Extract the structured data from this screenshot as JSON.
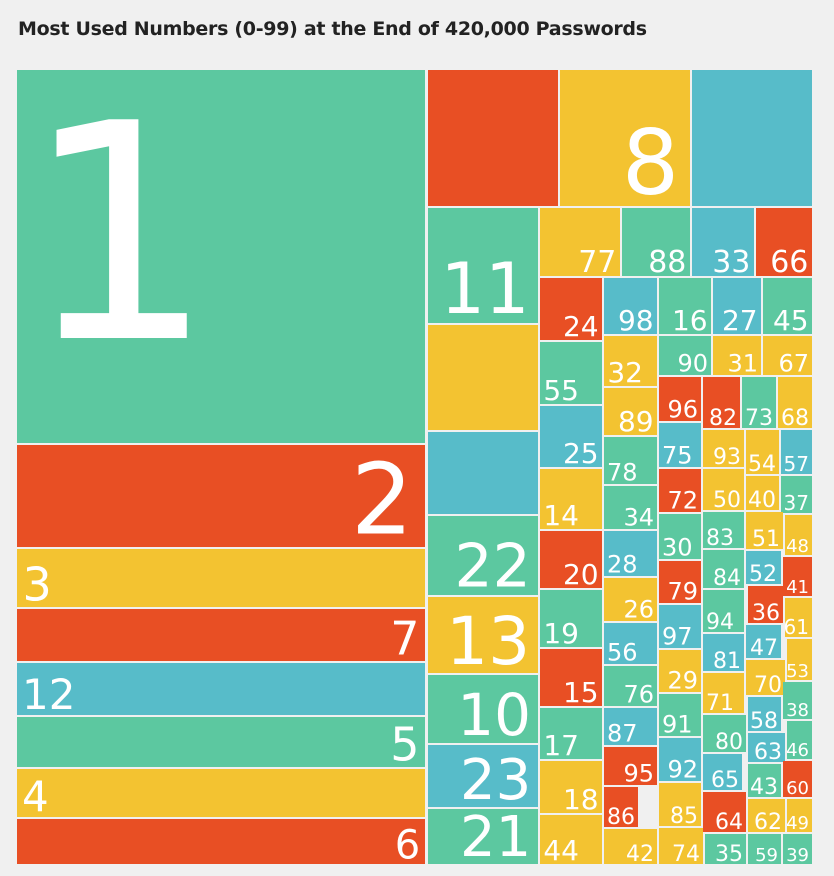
{
  "chart_data": {
    "type": "treemap",
    "title": "Most Used Numbers (0-99) at the End of 420,000 Passwords",
    "colors": {
      "green": "#5cc8a0",
      "red": "#e84f24",
      "yellow": "#f3c331",
      "blue": "#57bcc9"
    },
    "cells": [
      {
        "label": "1",
        "color": "green"
      },
      {
        "label": "",
        "color": "red"
      },
      {
        "label": "8",
        "color": "yellow"
      },
      {
        "label": "",
        "color": "blue"
      },
      {
        "label": "2",
        "color": "red"
      },
      {
        "label": "3",
        "color": "yellow"
      },
      {
        "label": "7",
        "color": "red"
      },
      {
        "label": "12",
        "color": "blue"
      },
      {
        "label": "5",
        "color": "green"
      },
      {
        "label": "4",
        "color": "yellow"
      },
      {
        "label": "6",
        "color": "red"
      },
      {
        "label": "11",
        "color": "green"
      },
      {
        "label": "",
        "color": "yellow"
      },
      {
        "label": "",
        "color": "blue"
      },
      {
        "label": "22",
        "color": "green"
      },
      {
        "label": "13",
        "color": "yellow"
      },
      {
        "label": "10",
        "color": "green"
      },
      {
        "label": "23",
        "color": "blue"
      },
      {
        "label": "21",
        "color": "green"
      },
      {
        "label": "77",
        "color": "yellow"
      },
      {
        "label": "88",
        "color": "green"
      },
      {
        "label": "33",
        "color": "blue"
      },
      {
        "label": "66",
        "color": "red"
      },
      {
        "label": "24",
        "color": "red"
      },
      {
        "label": "98",
        "color": "blue"
      },
      {
        "label": "16",
        "color": "green"
      },
      {
        "label": "27",
        "color": "blue"
      },
      {
        "label": "45",
        "color": "green"
      },
      {
        "label": "55",
        "color": "green"
      },
      {
        "label": "32",
        "color": "yellow"
      },
      {
        "label": "90",
        "color": "green"
      },
      {
        "label": "31",
        "color": "yellow"
      },
      {
        "label": "67",
        "color": "yellow"
      },
      {
        "label": "89",
        "color": "yellow"
      },
      {
        "label": "96",
        "color": "red"
      },
      {
        "label": "82",
        "color": "red"
      },
      {
        "label": "73",
        "color": "green"
      },
      {
        "label": "68",
        "color": "yellow"
      },
      {
        "label": "25",
        "color": "blue"
      },
      {
        "label": "78",
        "color": "green"
      },
      {
        "label": "75",
        "color": "blue"
      },
      {
        "label": "93",
        "color": "yellow"
      },
      {
        "label": "54",
        "color": "yellow"
      },
      {
        "label": "57",
        "color": "blue"
      },
      {
        "label": "14",
        "color": "yellow"
      },
      {
        "label": "34",
        "color": "green"
      },
      {
        "label": "72",
        "color": "red"
      },
      {
        "label": "50",
        "color": "yellow"
      },
      {
        "label": "40",
        "color": "yellow"
      },
      {
        "label": "37",
        "color": "green"
      },
      {
        "label": "30",
        "color": "green"
      },
      {
        "label": "83",
        "color": "green"
      },
      {
        "label": "51",
        "color": "yellow"
      },
      {
        "label": "48",
        "color": "yellow"
      },
      {
        "label": "20",
        "color": "red"
      },
      {
        "label": "28",
        "color": "blue"
      },
      {
        "label": "79",
        "color": "red"
      },
      {
        "label": "84",
        "color": "green"
      },
      {
        "label": "52",
        "color": "blue"
      },
      {
        "label": "41",
        "color": "red"
      },
      {
        "label": "26",
        "color": "yellow"
      },
      {
        "label": "36",
        "color": "red"
      },
      {
        "label": "19",
        "color": "green"
      },
      {
        "label": "97",
        "color": "blue"
      },
      {
        "label": "94",
        "color": "green"
      },
      {
        "label": "61",
        "color": "yellow"
      },
      {
        "label": "56",
        "color": "blue"
      },
      {
        "label": "81",
        "color": "blue"
      },
      {
        "label": "47",
        "color": "blue"
      },
      {
        "label": "29",
        "color": "yellow"
      },
      {
        "label": "70",
        "color": "yellow"
      },
      {
        "label": "53",
        "color": "yellow"
      },
      {
        "label": "15",
        "color": "red"
      },
      {
        "label": "76",
        "color": "green"
      },
      {
        "label": "71",
        "color": "yellow"
      },
      {
        "label": "58",
        "color": "blue"
      },
      {
        "label": "38",
        "color": "green"
      },
      {
        "label": "91",
        "color": "green"
      },
      {
        "label": "80",
        "color": "green"
      },
      {
        "label": "63",
        "color": "blue"
      },
      {
        "label": "46",
        "color": "green"
      },
      {
        "label": "17",
        "color": "green"
      },
      {
        "label": "87",
        "color": "blue"
      },
      {
        "label": "92",
        "color": "blue"
      },
      {
        "label": "43",
        "color": "green"
      },
      {
        "label": "60",
        "color": "red"
      },
      {
        "label": "95",
        "color": "red"
      },
      {
        "label": "65",
        "color": "blue"
      },
      {
        "label": "18",
        "color": "yellow"
      },
      {
        "label": "86",
        "color": "red"
      },
      {
        "label": "85",
        "color": "yellow"
      },
      {
        "label": "64",
        "color": "red"
      },
      {
        "label": "62",
        "color": "yellow"
      },
      {
        "label": "49",
        "color": "yellow"
      },
      {
        "label": "44",
        "color": "yellow"
      },
      {
        "label": "42",
        "color": "yellow"
      },
      {
        "label": "74",
        "color": "yellow"
      },
      {
        "label": "35",
        "color": "green"
      },
      {
        "label": "59",
        "color": "green"
      },
      {
        "label": "39",
        "color": "green"
      }
    ]
  }
}
